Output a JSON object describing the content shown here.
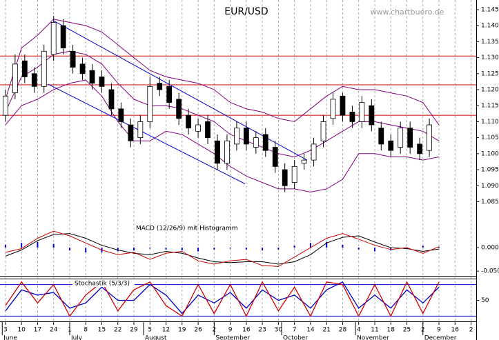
{
  "chart_data": [
    {
      "type": "candlestick",
      "title": "EUR/USD",
      "source": "www.chartbuero.de",
      "x": [
        0,
        3,
        6,
        9,
        12,
        15,
        18,
        21,
        24,
        27,
        30,
        33,
        36,
        39,
        42,
        45,
        48,
        51,
        54,
        57,
        60,
        63,
        66,
        69,
        72,
        75,
        78,
        81,
        84,
        87,
        90,
        93,
        96,
        99,
        102,
        105,
        108,
        111,
        114,
        117,
        120,
        123,
        126,
        129,
        132
      ],
      "open": [
        1.112,
        1.119,
        1.129,
        1.125,
        1.121,
        1.131,
        1.14,
        1.132,
        1.128,
        1.126,
        1.124,
        1.12,
        1.114,
        1.109,
        1.105,
        1.11,
        1.122,
        1.121,
        1.117,
        1.112,
        1.107,
        1.11,
        1.104,
        1.097,
        1.103,
        1.108,
        1.102,
        1.106,
        1.102,
        1.095,
        1.091,
        1.097,
        1.098,
        1.104,
        1.111,
        1.118,
        1.113,
        1.11,
        1.115,
        1.108,
        1.104,
        1.102,
        1.108,
        1.103,
        1.101
      ],
      "high": [
        1.12,
        1.131,
        1.131,
        1.127,
        1.134,
        1.143,
        1.142,
        1.134,
        1.13,
        1.128,
        1.126,
        1.122,
        1.116,
        1.111,
        1.112,
        1.124,
        1.124,
        1.123,
        1.119,
        1.114,
        1.111,
        1.112,
        1.106,
        1.106,
        1.11,
        1.11,
        1.107,
        1.108,
        1.104,
        1.097,
        1.098,
        1.1,
        1.105,
        1.112,
        1.119,
        1.119,
        1.115,
        1.118,
        1.117,
        1.11,
        1.106,
        1.11,
        1.11,
        1.105,
        1.111
      ],
      "low": [
        1.11,
        1.117,
        1.122,
        1.119,
        1.119,
        1.129,
        1.131,
        1.125,
        1.123,
        1.12,
        1.119,
        1.112,
        1.108,
        1.102,
        1.103,
        1.108,
        1.118,
        1.114,
        1.109,
        1.106,
        1.105,
        1.103,
        1.095,
        1.095,
        1.101,
        1.101,
        1.1,
        1.099,
        1.094,
        1.088,
        1.089,
        1.095,
        1.096,
        1.102,
        1.109,
        1.11,
        1.108,
        1.108,
        1.107,
        1.101,
        1.099,
        1.1,
        1.1,
        1.098,
        1.099
      ],
      "close": [
        1.118,
        1.128,
        1.124,
        1.121,
        1.132,
        1.141,
        1.133,
        1.127,
        1.125,
        1.122,
        1.121,
        1.114,
        1.11,
        1.104,
        1.11,
        1.121,
        1.12,
        1.116,
        1.111,
        1.108,
        1.109,
        1.105,
        1.097,
        1.104,
        1.108,
        1.103,
        1.105,
        1.101,
        1.096,
        1.09,
        1.096,
        1.098,
        1.103,
        1.11,
        1.117,
        1.112,
        1.11,
        1.116,
        1.109,
        1.103,
        1.101,
        1.108,
        1.102,
        1.1,
        1.109
      ],
      "up_color": "#ffffff",
      "down_color": "#000000",
      "bands": {
        "x": [
          0,
          5,
          10,
          15,
          20,
          25,
          30,
          35,
          40,
          45,
          50,
          55,
          60,
          65,
          70,
          75,
          80,
          85,
          90,
          95,
          100,
          105,
          110,
          115,
          120,
          125,
          130,
          135
        ],
        "upper": [
          1.117,
          1.133,
          1.137,
          1.142,
          1.141,
          1.14,
          1.138,
          1.134,
          1.13,
          1.126,
          1.124,
          1.123,
          1.122,
          1.12,
          1.116,
          1.114,
          1.113,
          1.111,
          1.11,
          1.114,
          1.118,
          1.121,
          1.12,
          1.12,
          1.119,
          1.118,
          1.116,
          1.109
        ],
        "middle": [
          1.113,
          1.124,
          1.127,
          1.131,
          1.132,
          1.131,
          1.128,
          1.122,
          1.117,
          1.115,
          1.115,
          1.114,
          1.112,
          1.11,
          1.106,
          1.104,
          1.102,
          1.1,
          1.099,
          1.101,
          1.104,
          1.107,
          1.11,
          1.11,
          1.109,
          1.108,
          1.107,
          1.104
        ],
        "lower": [
          1.109,
          1.115,
          1.117,
          1.12,
          1.122,
          1.123,
          1.118,
          1.11,
          1.104,
          1.104,
          1.107,
          1.106,
          1.103,
          1.1,
          1.096,
          1.093,
          1.091,
          1.089,
          1.089,
          1.088,
          1.089,
          1.092,
          1.1,
          1.1,
          1.099,
          1.099,
          1.098,
          1.099
        ],
        "color": "#800080"
      },
      "hlines": {
        "values": [
          1.1305,
          1.1215,
          1.112
        ],
        "color": "#cc0000"
      },
      "trendlines": [
        {
          "x": [
            15,
            93.9
          ],
          "y": [
            1.1415,
            1.098
          ]
        },
        {
          "x": [
            13.3,
            74.6
          ],
          "y": [
            1.1217,
            1.0906
          ]
        }
      ],
      "trend_color": "#0000cc",
      "xlim": [
        -1.7,
        146.6
      ],
      "ylim": [
        1.0795,
        1.148
      ],
      "yticks": [
        1.085,
        {
          "value": 1.09,
          "label": "1.090"
        },
        1.095,
        {
          "value": 1.1,
          "label": "1.100"
        },
        1.105,
        {
          "value": 1.11,
          "label": "1.110"
        },
        1.115,
        {
          "value": 1.12,
          "label": "1.120"
        },
        1.125,
        {
          "value": 1.13,
          "label": "1.130"
        },
        1.135,
        {
          "value": 1.14,
          "label": "1.140"
        },
        1.145
      ]
    },
    {
      "type": "macd",
      "title": "MACD (12/26/9) mit Histogramm",
      "x": [
        0,
        5,
        10,
        15,
        20,
        25,
        30,
        35,
        40,
        45,
        50,
        55,
        60,
        65,
        70,
        75,
        80,
        85,
        90,
        95,
        100,
        105,
        110,
        115,
        120,
        125,
        130,
        135
      ],
      "macd": {
        "color": "#000000",
        "values": [
          -0.018,
          -0.005,
          0.015,
          0.028,
          0.03,
          0.02,
          0.005,
          -0.005,
          -0.012,
          -0.015,
          -0.008,
          -0.012,
          -0.022,
          -0.03,
          -0.032,
          -0.03,
          -0.03,
          -0.035,
          -0.03,
          -0.015,
          0.01,
          0.022,
          0.025,
          0.012,
          0.0,
          -0.002,
          -0.008,
          -0.003
        ]
      },
      "signal": {
        "color": "#cc0000",
        "values": [
          -0.01,
          -0.002,
          0.02,
          0.035,
          0.025,
          0.01,
          -0.005,
          -0.015,
          -0.01,
          -0.025,
          -0.012,
          -0.008,
          -0.028,
          -0.035,
          -0.028,
          -0.025,
          -0.038,
          -0.04,
          -0.02,
          0.0,
          0.02,
          0.03,
          0.018,
          0.005,
          -0.004,
          0.0,
          -0.012,
          0.002
        ]
      },
      "histogram": {
        "color": "#0000cc",
        "values": [
          0.006,
          0.01,
          0.012,
          0.008,
          -0.006,
          -0.01,
          -0.01,
          -0.008,
          -0.006,
          -0.002,
          -0.004,
          -0.006,
          -0.008,
          -0.004,
          -0.002,
          -0.004,
          -0.006,
          -0.004,
          0.004,
          0.01,
          0.012,
          0.006,
          -0.004,
          -0.008,
          -0.006,
          -0.002,
          0.004,
          0.002
        ]
      },
      "xlim": [
        -1.7,
        146.6
      ],
      "ylim": [
        -0.06,
        0.05
      ],
      "yticks": [
        {
          "value": 0,
          "label": "0.000"
        },
        {
          "value": -0.05,
          "label": "-0.050"
        }
      ]
    },
    {
      "type": "stochastic",
      "title": "Stochastik (5/3/3)",
      "x": [
        0,
        5,
        10,
        15,
        20,
        25,
        30,
        35,
        40,
        45,
        50,
        55,
        60,
        65,
        70,
        75,
        80,
        85,
        90,
        95,
        100,
        105,
        110,
        115,
        120,
        125,
        130,
        135
      ],
      "k": {
        "color": "#cc0000",
        "values": [
          40,
          85,
          45,
          80,
          20,
          60,
          85,
          30,
          70,
          85,
          40,
          20,
          80,
          25,
          80,
          20,
          85,
          30,
          75,
          20,
          85,
          80,
          20,
          80,
          20,
          85,
          25,
          85
        ]
      },
      "d": {
        "color": "#0000cc",
        "values": [
          30,
          70,
          60,
          65,
          35,
          45,
          75,
          50,
          50,
          80,
          60,
          25,
          60,
          45,
          65,
          35,
          70,
          50,
          60,
          35,
          70,
          85,
          35,
          60,
          35,
          70,
          45,
          75
        ]
      },
      "levels": [
        80,
        20
      ],
      "level_color": "#0000cc",
      "xlim": [
        -1.7,
        146.6
      ],
      "ylim": [
        10,
        90
      ],
      "yticks": [
        50
      ],
      "xticks": [
        {
          "value": 0,
          "label": "3"
        },
        {
          "value": 5,
          "label": "10"
        },
        {
          "value": 10,
          "label": "17"
        },
        {
          "value": 15,
          "label": "24"
        },
        {
          "value": 20,
          "label": "1"
        },
        {
          "value": 25,
          "label": "8"
        },
        {
          "value": 30,
          "label": "15"
        },
        {
          "value": 35,
          "label": "22"
        },
        {
          "value": 40,
          "label": "29"
        },
        {
          "value": 45,
          "label": "5"
        },
        {
          "value": 50,
          "label": "12"
        },
        {
          "value": 55,
          "label": "19"
        },
        {
          "value": 60,
          "label": "26"
        },
        {
          "value": 65,
          "label": "2"
        },
        {
          "value": 70,
          "label": "9"
        },
        {
          "value": 75,
          "label": "16"
        },
        {
          "value": 80,
          "label": "23"
        },
        {
          "value": 85,
          "label": "30"
        },
        {
          "value": 90,
          "label": "7"
        },
        {
          "value": 95,
          "label": "14"
        },
        {
          "value": 100,
          "label": "21"
        },
        {
          "value": 105,
          "label": "28"
        },
        {
          "value": 110,
          "label": "4"
        },
        {
          "value": 115,
          "label": "11"
        },
        {
          "value": 120,
          "label": "18"
        },
        {
          "value": 125,
          "label": "25"
        },
        {
          "value": 130,
          "label": "2"
        },
        {
          "value": 135,
          "label": "9"
        },
        {
          "value": 140,
          "label": "16"
        },
        {
          "value": 145,
          "label": "2"
        }
      ],
      "month_ticks": [
        {
          "value": -1,
          "label": "June"
        },
        {
          "value": 20,
          "label": "July"
        },
        {
          "value": 43,
          "label": "August"
        },
        {
          "value": 65,
          "label": "September"
        },
        {
          "value": 86,
          "label": "October"
        },
        {
          "value": 109,
          "label": "November"
        },
        {
          "value": 130,
          "label": "December"
        }
      ]
    }
  ]
}
